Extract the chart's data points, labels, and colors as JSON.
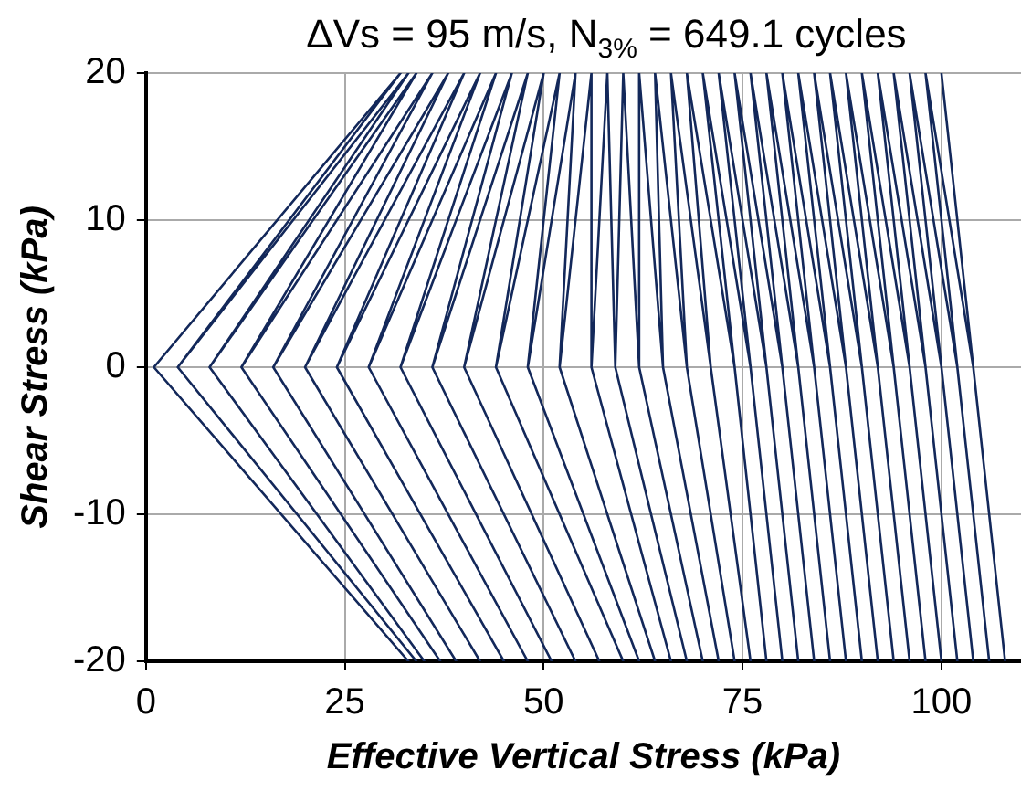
{
  "chart_data": {
    "type": "line",
    "title": "ΔVs = 95 m/s, N$_{3%}$ = 649.1 cycles",
    "xlabel": "Effective Vertical Stress (kPa)",
    "ylabel": "Shear Stress (kPa)",
    "x": [
      100,
      104,
      108,
      104,
      98,
      102,
      106,
      102,
      96,
      100,
      104,
      100,
      94,
      98,
      102,
      98,
      92,
      96,
      100,
      96,
      90,
      94,
      98,
      94,
      88,
      92,
      96,
      92,
      86,
      90,
      94,
      90,
      84,
      88,
      92,
      88,
      82,
      86,
      90,
      86,
      80,
      84,
      88,
      84,
      78,
      82,
      86,
      82,
      76,
      80,
      84,
      80,
      74,
      78,
      82,
      78,
      72,
      76,
      80,
      76,
      70,
      74,
      78,
      74,
      68,
      71,
      76,
      71,
      66,
      68,
      74,
      68,
      64,
      65,
      72,
      65,
      62,
      62,
      70,
      62,
      60,
      59,
      68,
      59,
      58,
      56,
      66,
      56,
      56,
      52,
      64,
      52,
      54,
      48,
      62,
      48,
      52,
      44,
      60,
      44,
      50,
      40,
      57,
      40,
      48,
      36,
      54,
      36,
      46,
      32,
      51,
      32,
      44,
      28,
      48,
      28,
      42,
      24,
      45,
      24,
      40,
      20,
      42,
      20,
      38,
      16,
      39,
      16,
      36,
      12,
      37,
      12,
      34,
      8,
      35,
      8,
      33,
      4,
      34,
      4,
      32,
      1,
      33,
      1
    ],
    "series": [
      {
        "color": "#13285a",
        "values": [
          20,
          0,
          -20,
          0,
          20,
          0,
          -20,
          0,
          20,
          0,
          -20,
          0,
          20,
          0,
          -20,
          0,
          20,
          0,
          -20,
          0,
          20,
          0,
          -20,
          0,
          20,
          0,
          -20,
          0,
          20,
          0,
          -20,
          0,
          20,
          0,
          -20,
          0,
          20,
          0,
          -20,
          0,
          20,
          0,
          -20,
          0,
          20,
          0,
          -20,
          0,
          20,
          0,
          -20,
          0,
          20,
          0,
          -20,
          0,
          20,
          0,
          -20,
          0,
          20,
          0,
          -20,
          0,
          20,
          0,
          -20,
          0,
          20,
          0,
          -20,
          0,
          20,
          0,
          -20,
          0,
          20,
          0,
          -20,
          0,
          20,
          0,
          -20,
          0,
          20,
          0,
          -20,
          0,
          20,
          0,
          -20,
          0,
          20,
          0,
          -20,
          0,
          20,
          0,
          -20,
          0,
          20,
          0,
          -20,
          0,
          20,
          0,
          -20,
          0,
          20,
          0,
          -20,
          0,
          20,
          0,
          -20,
          0,
          20,
          0,
          -20,
          0,
          20,
          0,
          -20,
          0,
          20,
          0,
          -20,
          0,
          20,
          0,
          -20,
          0,
          20,
          0,
          -20,
          0,
          20,
          0,
          -20,
          0,
          20,
          0,
          -20,
          0
        ]
      }
    ],
    "xlim": [
      0,
      110
    ],
    "xticks": [
      0,
      25,
      50,
      75,
      100
    ],
    "ylim": [
      -20,
      20
    ],
    "yticks": [
      -20,
      -10,
      0,
      10,
      20
    ],
    "grid": true,
    "legend": false,
    "marker": "none",
    "line_style": "solid"
  }
}
